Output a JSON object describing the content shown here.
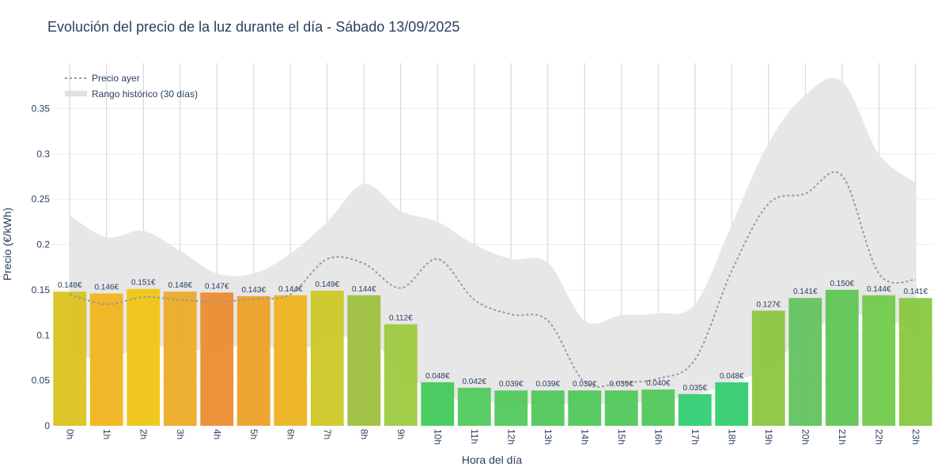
{
  "chart_data": {
    "type": "bar",
    "title": "Evolución del precio de la luz durante el día - Sábado 13/09/2025",
    "xlabel": "Hora del día",
    "ylabel": "Precio (€/kWh)",
    "ylim": [
      0,
      0.4
    ],
    "yticks": [
      {
        "value": 0,
        "label": "0"
      },
      {
        "value": 0.05,
        "label": "0.05"
      },
      {
        "value": 0.1,
        "label": "0.1"
      },
      {
        "value": 0.15,
        "label": "0.15"
      },
      {
        "value": 0.2,
        "label": "0.2"
      },
      {
        "value": 0.25,
        "label": "0.25"
      },
      {
        "value": 0.3,
        "label": "0.3"
      },
      {
        "value": 0.35,
        "label": "0.35"
      }
    ],
    "grid": true,
    "legend_position": "top-left",
    "categories": [
      "0h",
      "1h",
      "2h",
      "3h",
      "4h",
      "5h",
      "6h",
      "7h",
      "8h",
      "9h",
      "10h",
      "11h",
      "12h",
      "13h",
      "14h",
      "15h",
      "16h",
      "17h",
      "18h",
      "19h",
      "20h",
      "21h",
      "22h",
      "23h"
    ],
    "values": [
      0.148,
      0.146,
      0.151,
      0.148,
      0.147,
      0.143,
      0.144,
      0.149,
      0.144,
      0.112,
      0.048,
      0.042,
      0.039,
      0.039,
      0.039,
      0.039,
      0.04,
      0.035,
      0.048,
      0.127,
      0.141,
      0.15,
      0.144,
      0.141
    ],
    "value_labels": [
      "0.148€",
      "0.146€",
      "0.151€",
      "0.148€",
      "0.147€",
      "0.143€",
      "0.144€",
      "0.149€",
      "0.144€",
      "0.112€",
      "0.048€",
      "0.042€",
      "0.039€",
      "0.039€",
      "0.039€",
      "0.039€",
      "0.040€",
      "0.035€",
      "0.048€",
      "0.127€",
      "0.141€",
      "0.150€",
      "0.144€",
      "0.141€"
    ],
    "bar_colors": [
      "#d9c21a",
      "#f0b41a",
      "#f0c40e",
      "#eca925",
      "#eb8a2b",
      "#ed9f22",
      "#edb21b",
      "#ccc722",
      "#9bbe3a",
      "#9ac93a",
      "#3ec958",
      "#4cc95a",
      "#4ec857",
      "#4ec657",
      "#4ec657",
      "#4ec657",
      "#4ec657",
      "#2ecc71",
      "#2fcc6c",
      "#8bc53c",
      "#5fc25a",
      "#5bc551",
      "#6ec948",
      "#86c73c"
    ],
    "yesterday_series": {
      "name": "Precio ayer",
      "color": "#999999",
      "values": [
        0.145,
        0.134,
        0.142,
        0.139,
        0.137,
        0.14,
        0.145,
        0.184,
        0.179,
        0.152,
        0.184,
        0.139,
        0.123,
        0.116,
        0.048,
        0.048,
        0.052,
        0.073,
        0.171,
        0.245,
        0.256,
        0.276,
        0.168,
        0.161
      ]
    },
    "historical_range": {
      "name": "Rango histórico (30 días)",
      "color": "#e6e6e6",
      "upper": [
        0.232,
        0.208,
        0.215,
        0.193,
        0.168,
        0.168,
        0.19,
        0.225,
        0.267,
        0.237,
        0.225,
        0.2,
        0.184,
        0.18,
        0.116,
        0.122,
        0.124,
        0.134,
        0.222,
        0.312,
        0.365,
        0.38,
        0.3,
        0.268
      ],
      "lower": [
        0.08,
        0.073,
        0.088,
        0.085,
        0.083,
        0.091,
        0.082,
        0.093,
        0.098,
        0.063,
        0.034,
        0.028,
        0.024,
        0.024,
        0.024,
        0.024,
        0.028,
        0.034,
        0.048,
        0.064,
        0.1,
        0.12,
        0.12,
        0.104
      ]
    }
  }
}
